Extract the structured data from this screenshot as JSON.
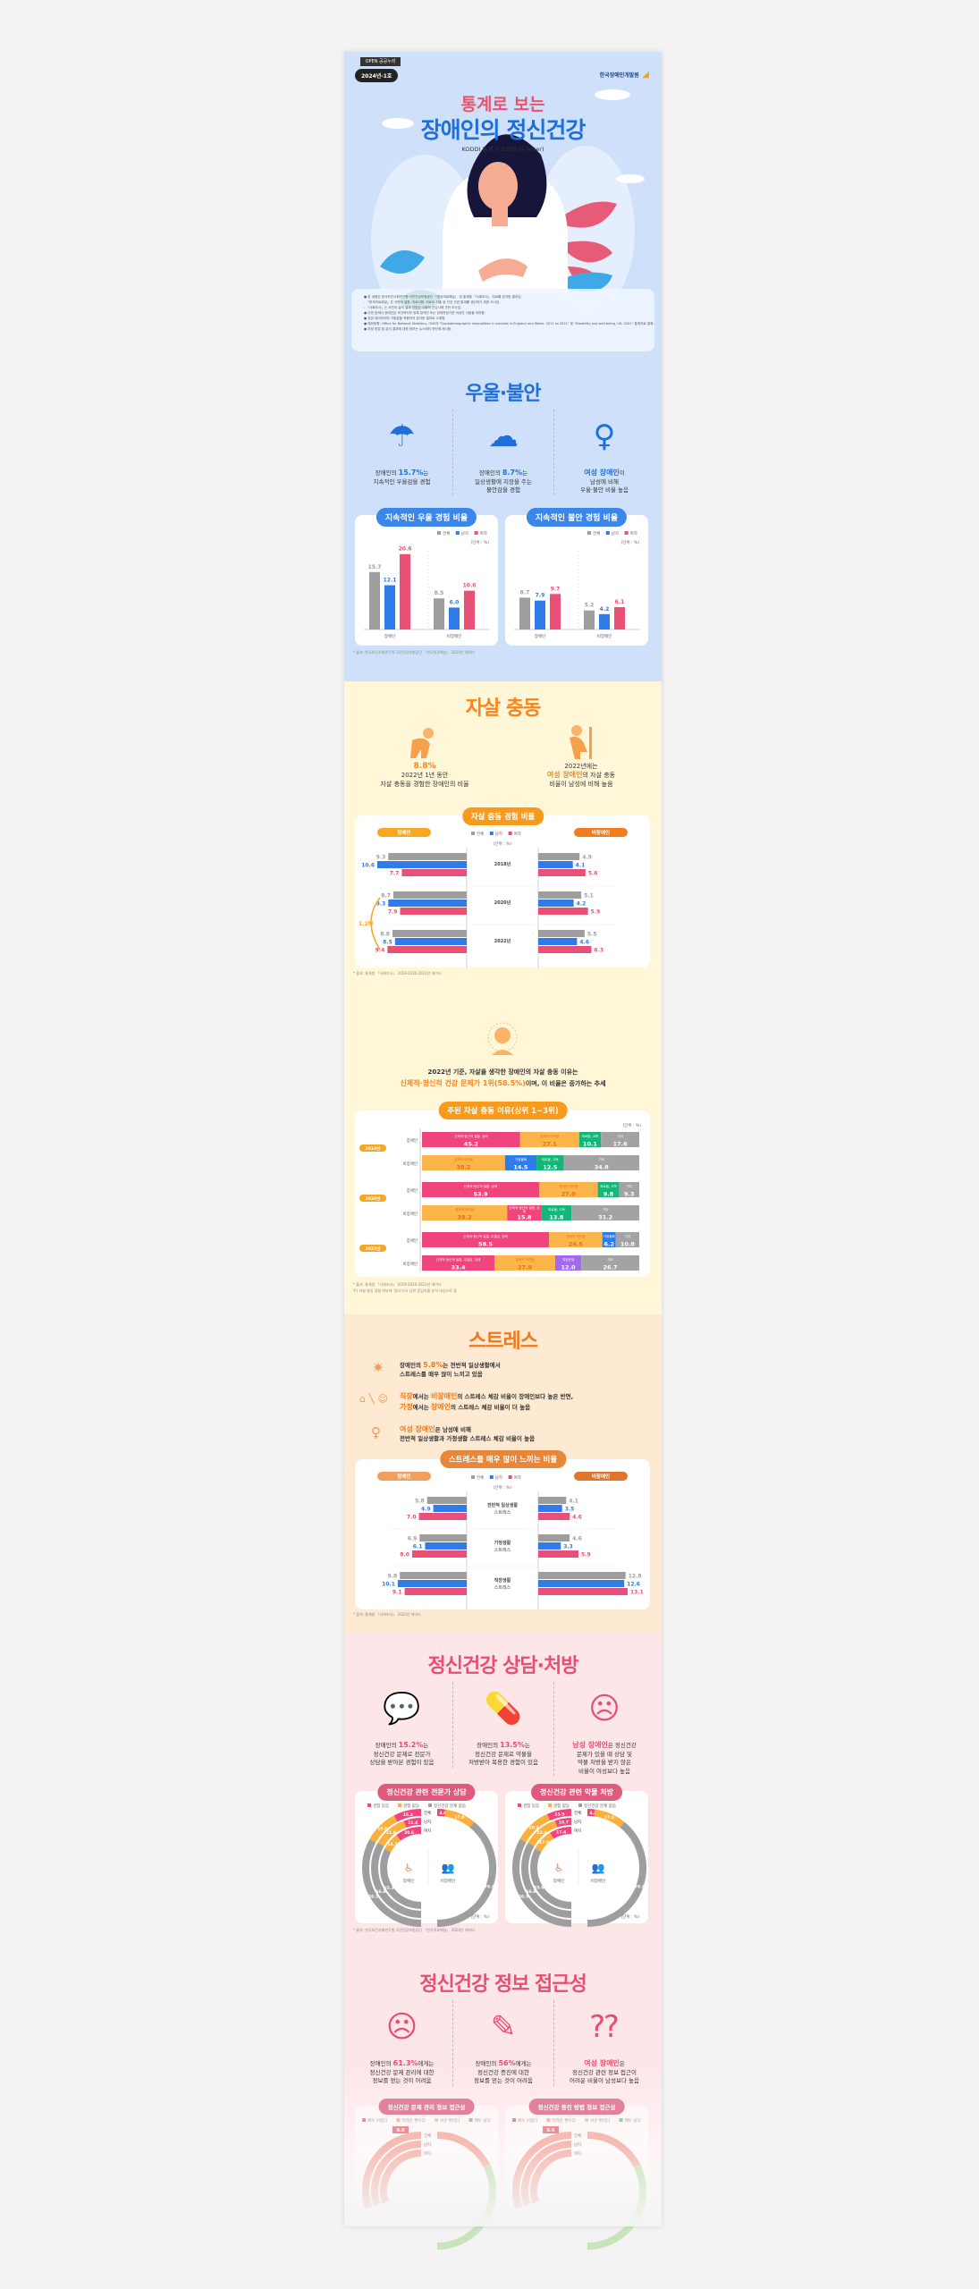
{
  "colors": {
    "total": "#9e9e9e",
    "male": "#2f7ce8",
    "female": "#ea4f75",
    "blue_title": "#1e6fd9",
    "orange_title": "#f7851e",
    "pink_title": "#e64f71",
    "stress_title": "#ee7a1e"
  },
  "header": {
    "badge_logo": "OPEN 공공누리",
    "issue": "2024년-1호",
    "org": "한국장애인개발원",
    "title_top": "통계로 보는",
    "title_main": "장애인의 정신건강",
    "subtitle": "KODDI 통계 뉴스레터 (e-letter)",
    "notes": [
      "● 본 내용은 한국보건사회연구원·국민건강보험공단 「한국의료패널」 및 통계청 「사회조사」 자료를 분석한 결과임.",
      "- 「한국의료패널」은 국민의 질환, 의료이용, 의료비 지출 등 건강 관련 통계를 생산하기 위한 조사임.",
      "- 「사회조사」는 국민의 삶의 질과 관련된 사회적 관심사에 관한 조사임.",
      "● 이번 호에서 장애인은 보건복지부 등록 장애인 또는 장애판정기준 이상인 사람을 의미함.",
      "● 표본 데이터이며 가중값을 적용하여 분석한 결과로 수록함.",
      "● 해외동향: Office for National Statistics, ONS의 \"Sociodemographic inequalities in suicides in England and Wales: 2011 to 2021\" 및 \"Disability and well-being, UK, 2021\" 통계자료 발췌.",
      "● 추정 방법 및 분석 결과에 대한 정보는 뉴스레터 하단에 제시함."
    ]
  },
  "depression": {
    "title": "우울·불안",
    "facts": [
      {
        "pre": "장애인의 ",
        "hl": "15.7%",
        "post": "는",
        "line2": "지속적인 우울감을 경험",
        "line3": "",
        "icon": "rain-cloud-person-icon"
      },
      {
        "pre": "장애인의 ",
        "hl": "8.7%",
        "post": "는",
        "line2": "일상생활에 지장을 주는",
        "line3": "불안감을 경험",
        "icon": "anxious-person-icon"
      },
      {
        "pre": "",
        "hl": "여성 장애인",
        "post": "이",
        "line2": "남성에 비해",
        "line3": "우울·불안 비율 높음",
        "icon": "sitting-sad-woman-icon"
      }
    ]
  },
  "legend": {
    "total": "전체",
    "male": "남자",
    "female": "여자",
    "unit": "(단위 : %)"
  },
  "chart_data": [
    {
      "type": "bar",
      "title": "지속적인 우울 경험 비율",
      "categories": [
        "장애인",
        "비장애인"
      ],
      "series": [
        {
          "name": "전체",
          "values": [
            15.7,
            8.5
          ]
        },
        {
          "name": "남자",
          "values": [
            12.1,
            6.0
          ]
        },
        {
          "name": "여자",
          "values": [
            20.6,
            10.6
          ]
        }
      ],
      "ylim": [
        0,
        22
      ],
      "unit": "%"
    },
    {
      "type": "bar",
      "title": "지속적인 불안 경험 비율",
      "categories": [
        "장애인",
        "비장애인"
      ],
      "series": [
        {
          "name": "전체",
          "values": [
            8.7,
            5.2
          ]
        },
        {
          "name": "남자",
          "values": [
            7.9,
            4.2
          ]
        },
        {
          "name": "여자",
          "values": [
            9.7,
            6.1
          ]
        }
      ],
      "ylim": [
        0,
        22
      ],
      "unit": "%"
    },
    {
      "type": "bar",
      "title": "자살 충동 경험 비율",
      "orientation": "mirrored-horizontal",
      "groups": [
        "장애인",
        "비장애인"
      ],
      "categories": [
        "2018년",
        "2020년",
        "2022년"
      ],
      "series": {
        "장애인": {
          "전체": [
            9.3,
            8.7,
            8.8
          ],
          "남자": [
            10.6,
            9.3,
            8.5
          ],
          "여자": [
            7.7,
            7.9,
            9.4
          ]
        },
        "비장애인": {
          "전체": [
            4.9,
            5.1,
            5.5
          ],
          "남자": [
            4.1,
            4.2,
            4.6
          ],
          "여자": [
            5.6,
            5.9,
            6.3
          ]
        }
      },
      "annotation": "1.2배",
      "unit": "%"
    },
    {
      "type": "bar",
      "title": "주된 자살 충동 이유(상위 1~3위)",
      "orientation": "stacked-horizontal",
      "unit": "%",
      "rows": [
        {
          "year": "2018년",
          "group": "장애인",
          "segments": [
            {
              "label": "신체적·정신적 질환, 장애",
              "value": 45.2,
              "color": "#f0457a"
            },
            {
              "label": "경제적 어려움",
              "value": 27.1,
              "color": "#fbb54a"
            },
            {
              "label": "외로움, 고독",
              "value": 10.1,
              "color": "#16b67a"
            },
            {
              "label": "기타",
              "value": 17.6,
              "color": "#a3a3a3"
            }
          ]
        },
        {
          "year": "2018년",
          "group": "비장애인",
          "segments": [
            {
              "label": "경제적 어려움",
              "value": 38.2,
              "color": "#fbb54a"
            },
            {
              "label": "가정불화",
              "value": 14.5,
              "color": "#2f7ce8"
            },
            {
              "label": "외로움, 고독",
              "value": 12.5,
              "color": "#16b67a"
            },
            {
              "label": "기타",
              "value": 34.8,
              "color": "#a3a3a3"
            }
          ]
        },
        {
          "year": "2020년",
          "group": "장애인",
          "segments": [
            {
              "label": "신체적·정신적 질환, 장애",
              "value": 53.9,
              "color": "#f0457a"
            },
            {
              "label": "경제적 어려움",
              "value": 27.0,
              "color": "#fbb54a"
            },
            {
              "label": "외로움, 고독",
              "value": 9.8,
              "color": "#16b67a"
            },
            {
              "label": "기타",
              "value": 9.3,
              "color": "#a3a3a3"
            }
          ]
        },
        {
          "year": "2020년",
          "group": "비장애인",
          "segments": [
            {
              "label": "경제적 어려움",
              "value": 39.2,
              "color": "#fbb54a"
            },
            {
              "label": "신체적·정신적 질환, 장애",
              "value": 15.8,
              "color": "#f0457a"
            },
            {
              "label": "외로움, 고독",
              "value": 13.8,
              "color": "#16b67a"
            },
            {
              "label": "기타",
              "value": 31.2,
              "color": "#a3a3a3"
            }
          ]
        },
        {
          "year": "2022년",
          "group": "장애인",
          "segments": [
            {
              "label": "신체적·정신적 질환, 우울감, 장애",
              "value": 58.5,
              "color": "#f0457a"
            },
            {
              "label": "경제적 어려움",
              "value": 24.5,
              "color": "#fbb54a"
            },
            {
              "label": "가정불화",
              "value": 6.2,
              "color": "#2f7ce8"
            },
            {
              "label": "기타",
              "value": 10.8,
              "color": "#a3a3a3"
            }
          ]
        },
        {
          "year": "2022년",
          "group": "비장애인",
          "segments": [
            {
              "label": "신체적·정신적 질환, 우울감, 장애",
              "value": 33.4,
              "color": "#f0457a"
            },
            {
              "label": "경제적 어려움",
              "value": 27.9,
              "color": "#fbb54a"
            },
            {
              "label": "직장문제",
              "value": 12.0,
              "color": "#a06bf0"
            },
            {
              "label": "기타",
              "value": 26.7,
              "color": "#a3a3a3"
            }
          ]
        }
      ]
    },
    {
      "type": "bar",
      "title": "스트레스를 매우 많이 느끼는 비율",
      "orientation": "mirrored-horizontal",
      "groups": [
        "장애인",
        "비장애인"
      ],
      "categories": [
        "전반적 일상생활 스트레스",
        "가정생활 스트레스",
        "직장생활 스트레스"
      ],
      "series": {
        "장애인": {
          "전체": [
            5.8,
            6.9,
            9.8
          ],
          "남자": [
            4.9,
            6.1,
            10.1
          ],
          "여자": [
            7.0,
            8.0,
            9.1
          ]
        },
        "비장애인": {
          "전체": [
            4.1,
            4.6,
            12.8
          ],
          "남자": [
            3.5,
            3.3,
            12.6
          ],
          "여자": [
            4.6,
            5.9,
            13.1
          ]
        }
      },
      "unit": "%"
    },
    {
      "type": "pie",
      "title": "정신건강 관련 전문가 상담",
      "legend": [
        "경험 있음",
        "경험 없음",
        "정신건강 문제 없음"
      ],
      "rings": [
        {
          "label": "전체",
          "values": [
            15.2,
            18.6,
            66.2
          ]
        },
        {
          "label": "남자",
          "values": [
            11.4,
            21.8,
            66.8
          ]
        },
        {
          "label": "여자",
          "values": [
            20.6,
            14.1,
            65.3
          ]
        }
      ],
      "nondisabled": [
        4.6,
        17.0,
        78.4
      ],
      "unit": "%"
    },
    {
      "type": "pie",
      "title": "정신건강 관련 약물 처방",
      "legend": [
        "경험 있음",
        "경험 없음",
        "정신건강 문제 없음"
      ],
      "rings": [
        {
          "label": "전체",
          "values": [
            13.5,
            20.2,
            66.3
          ]
        },
        {
          "label": "남자",
          "values": [
            10.7,
            22.4,
            66.9
          ]
        },
        {
          "label": "여자",
          "values": [
            17.4,
            17.0,
            65.6
          ]
        }
      ],
      "nondisabled": [
        4.3,
        17.3,
        78.4
      ],
      "unit": "%"
    }
  ],
  "suicide": {
    "title": "자살 충동",
    "fact1": {
      "hl": "8.8%",
      "line2": "2022년 1년 동안",
      "line3": "자살 충동을 경험한 장애인의 비율"
    },
    "fact2": {
      "line1": "2022년에는",
      "hl": "여성 장애인",
      "post": "의 자살 충동",
      "line3": "비율이 남성에 비해 높음"
    },
    "source1": "* 출처: 통계청 「사회조사」 2018·2020·2022년 데이터",
    "reason_line1": "2022년 기준, 자살을 생각한 장애인의 자살 충동 이유는",
    "reason_hl": "신체적·정신적 건강 문제가 1위(58.5%)",
    "reason_post": "이며, 이 비율은 증가하는 추세",
    "source2": "* 출처: 통계청 「사회조사」 2018·2020·2022년 데이터",
    "source3": "주) 자살 충동 경험 여부에 '있다'라고 답한 응답자를 분석 대상으로 함"
  },
  "stress": {
    "title": "스트레스",
    "facts": [
      {
        "pre": "장애인의 ",
        "hl": "5.8%",
        "post": "는 전반적 일상생활에서",
        "line2": "스트레스를 매우 많이 느끼고 있음"
      },
      {
        "hl1": "직장",
        "t1": "에서는 ",
        "hl2": "비장애인",
        "t2": "의 스트레스 체감 비율이 장애인보다 높은 반면,",
        "hl3": "가정",
        "t3": "에서는 ",
        "hl4": "장애인",
        "t4": "의 스트레스 체감 비율이 더 높음"
      },
      {
        "hl": "여성 장애인",
        "post": "은 남성에 비해",
        "line2": "전반적 일상생활과 가정생활 스트레스 체감 비율이 높음"
      }
    ],
    "source": "* 출처: 통계청 「사회조사」 2022년 데이터"
  },
  "counsel": {
    "title": "정신건강 상담·처방",
    "facts": [
      {
        "pre": "장애인의 ",
        "hl": "15.2%",
        "post": "는",
        "line2": "정신건강 문제로 전문가",
        "line3": "상담을 받아본 경험이 있음"
      },
      {
        "pre": "장애인의 ",
        "hl": "13.5%",
        "post": "는",
        "line2": "정신건강 문제로 약물을",
        "line3": "처방받아 복용한 경험이 있음"
      },
      {
        "hl": "남성 장애인",
        "post": "은 정신건강",
        "line2": "문제가 있을 때 상담 및",
        "line3": "약물 처방을 받지 않은",
        "line4": "비율이 여성보다 높음"
      }
    ],
    "disabled": "장애인",
    "nondisabled": "비장애인",
    "source": "* 출처: 한국보건사회연구원·국민건강보험공단 「한국의료패널」 2020년 데이터"
  },
  "info": {
    "title": "정신건강 정보 접근성",
    "facts": [
      {
        "pre": "장애인의 ",
        "hl": "61.3%",
        "post": "에게는",
        "line2": "정신건강 문제 관리에 대한",
        "line3": "정보를 얻는 것이 어려움"
      },
      {
        "pre": "장애인의 ",
        "hl": "56%",
        "post": "에게는",
        "line2": "정신건강 증진에 대한",
        "line3": "정보를 얻는 것이 어려움"
      },
      {
        "hl": "여성 장애인",
        "post": "은",
        "line2": "정신건강 관련 정보 접근이",
        "line3": "어려운 비율이 남성보다 높음"
      }
    ],
    "chart1_title": "정신건강 문제 관리 정보 접근성",
    "chart2_title": "정신건강 증진 방법 정보 접근성",
    "legend": [
      "매우 어렵다",
      "어려운 편이다",
      "쉬운 편이다",
      "매우 쉽다"
    ],
    "chart1_label": "9.8",
    "chart2_label": "6.6",
    "ring_labels": [
      "전체",
      "남자",
      "여자"
    ]
  }
}
